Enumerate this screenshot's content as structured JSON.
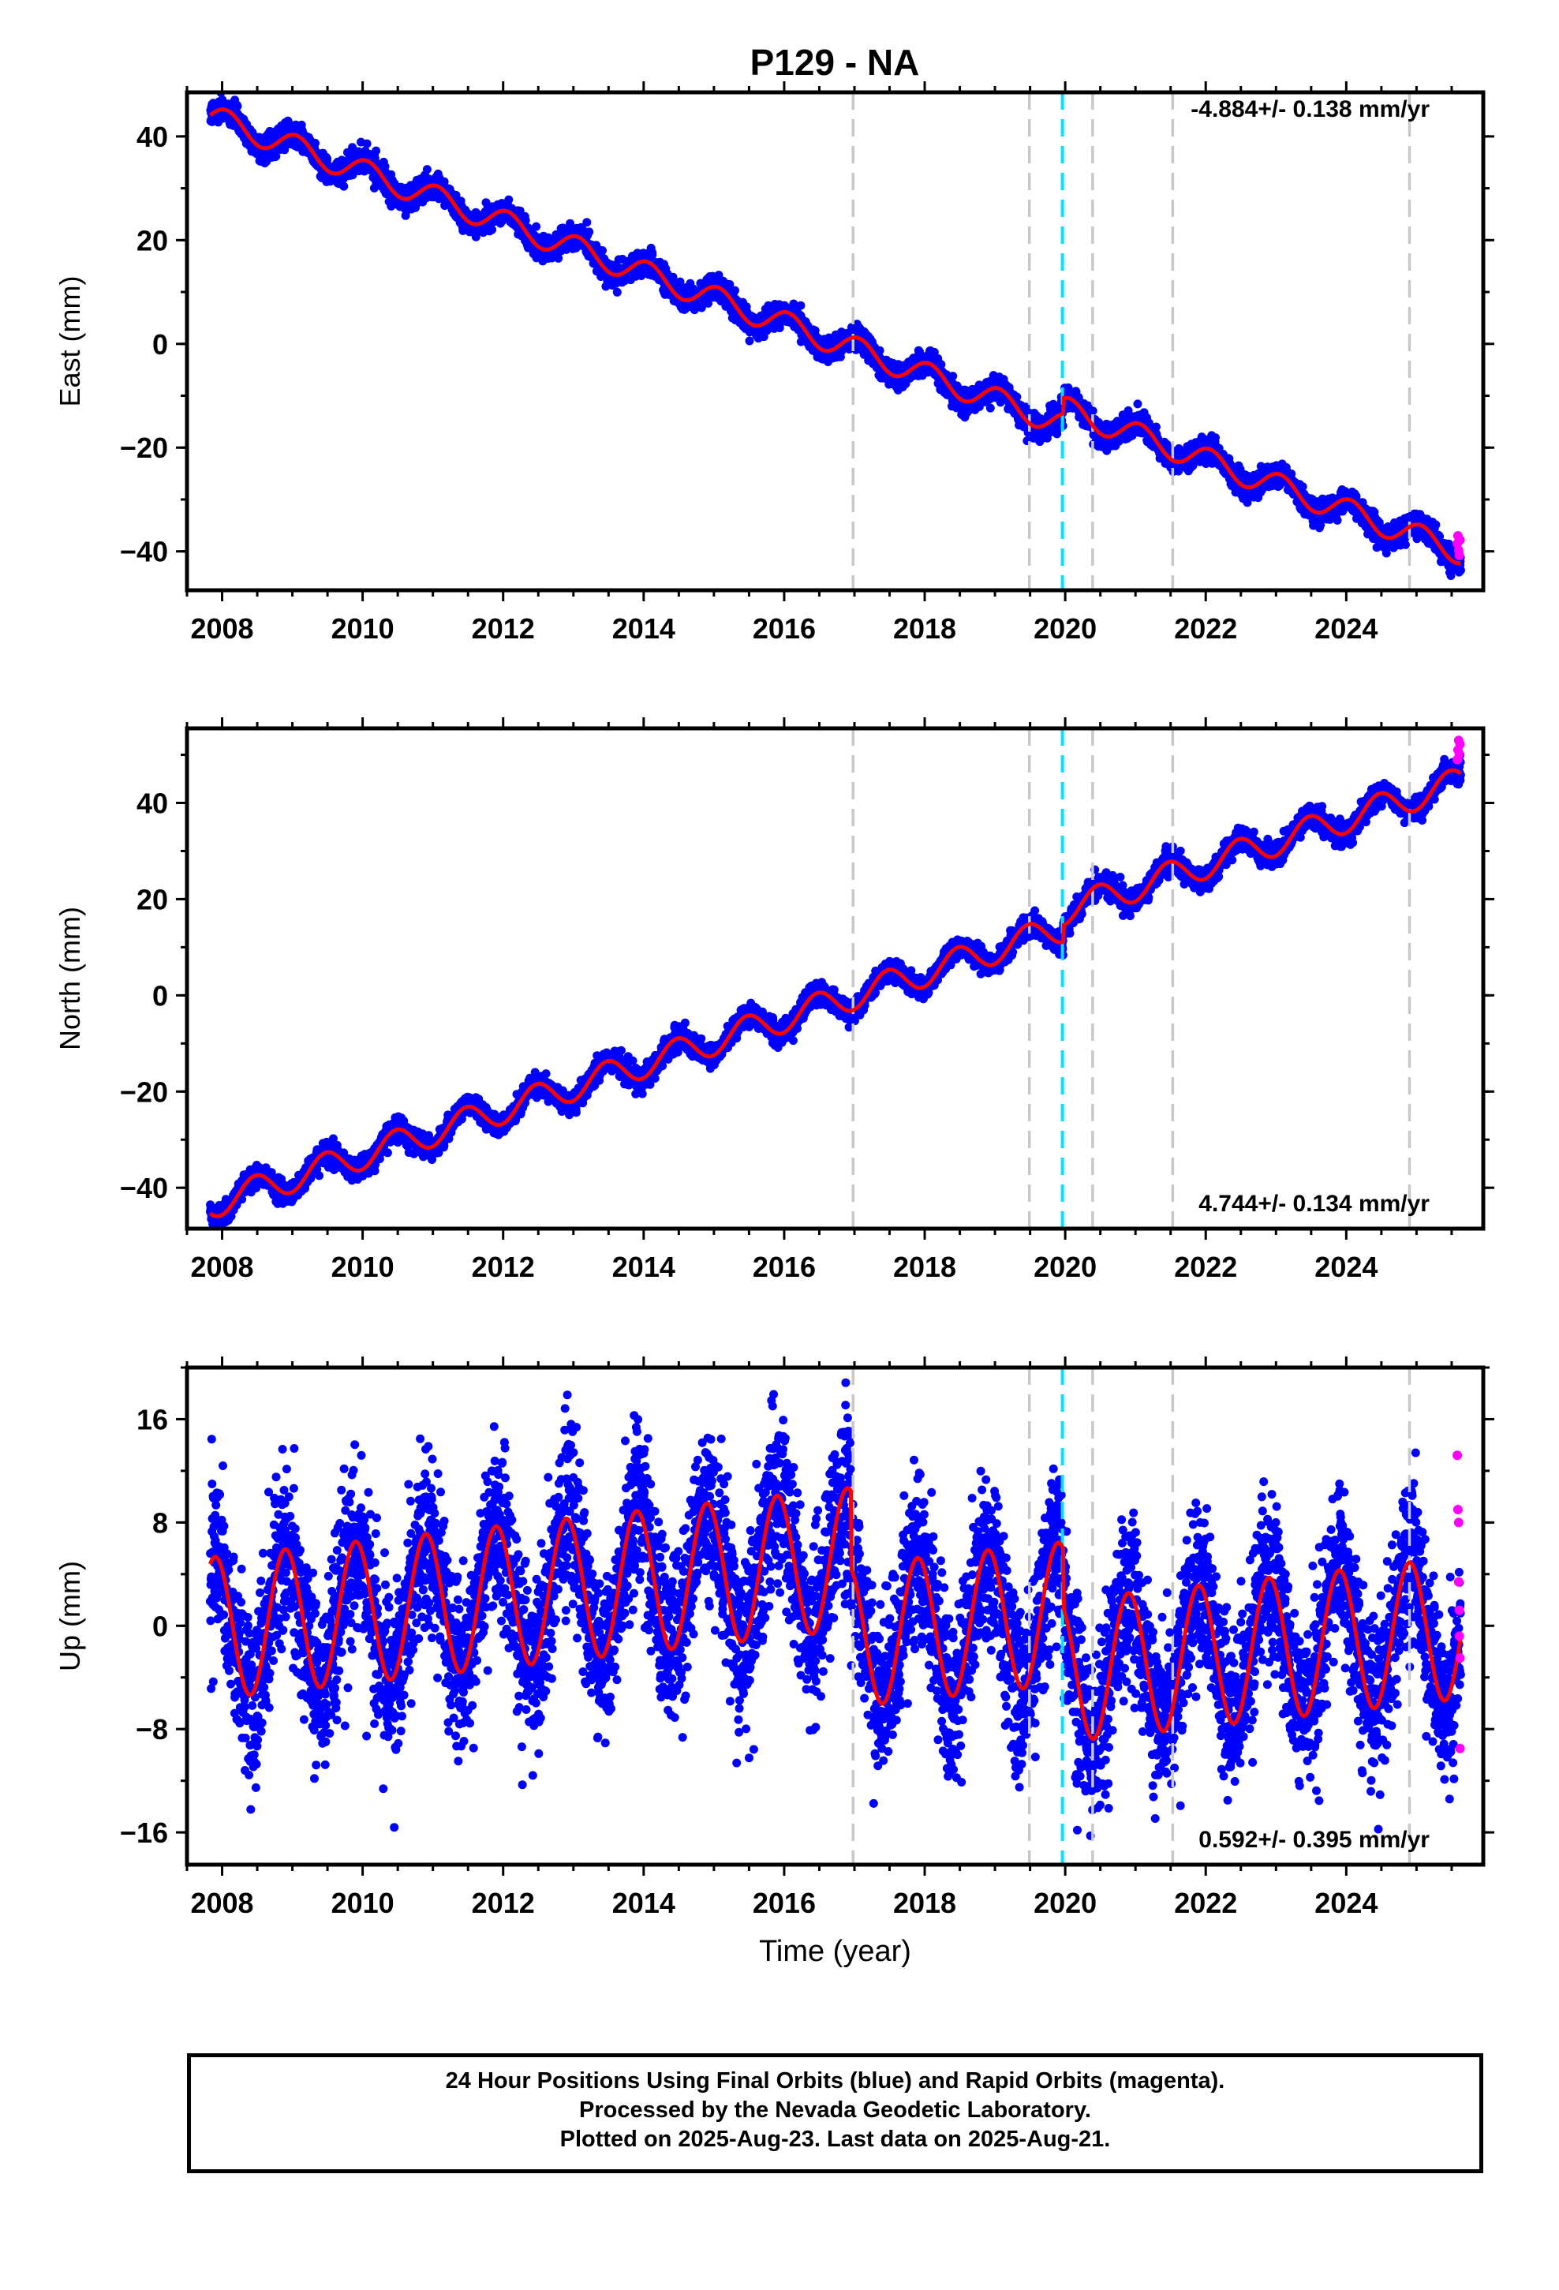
{
  "title": "P129 - NA",
  "colors": {
    "final_orbit": "#0000ff",
    "rapid_orbit": "#ff00ff",
    "model": "#ff0000",
    "equipment_change": "#c8c8c8",
    "earthquake": "#00e5ff"
  },
  "chart_data": [
    {
      "type": "scatter",
      "name": "east",
      "ylabel": "East (mm)",
      "xlabel": "",
      "ylim": [
        -47.5,
        48.5
      ],
      "xlim": [
        2007.5,
        2025.95
      ],
      "yticks": [
        -40,
        -20,
        0,
        20,
        40
      ],
      "xticks": [
        2008,
        2010,
        2012,
        2014,
        2016,
        2018,
        2020,
        2022,
        2024
      ],
      "rate_label": "-4.884+/- 0.138 mm/yr",
      "rate_position": "top-right",
      "model": {
        "start": 2007.83,
        "end": 2025.63,
        "y0": 43.8,
        "rate": -4.884,
        "annual_amp": 2.4,
        "annual_phase": 1.2,
        "noise": 1.1,
        "steps": [
          {
            "year": 2019.97,
            "offset": 3.0
          }
        ]
      },
      "rapid_points": [
        {
          "x": 2025.58,
          "y": -38.5
        },
        {
          "x": 2025.59,
          "y": -37.0
        },
        {
          "x": 2025.6,
          "y": -39.8
        },
        {
          "x": 2025.61,
          "y": -40.8
        },
        {
          "x": 2025.62,
          "y": -37.8
        }
      ]
    },
    {
      "type": "scatter",
      "name": "north",
      "ylabel": "North (mm)",
      "xlabel": "",
      "ylim": [
        -48.5,
        55.5
      ],
      "xlim": [
        2007.5,
        2025.95
      ],
      "yticks": [
        -40,
        -20,
        0,
        20,
        40
      ],
      "xticks": [
        2008,
        2010,
        2012,
        2014,
        2016,
        2018,
        2020,
        2022,
        2024
      ],
      "rate_label": "4.744+/- 0.134 mm/yr",
      "rate_position": "bottom-right",
      "model": {
        "start": 2007.83,
        "end": 2025.63,
        "y0": -43.5,
        "rate": 4.744,
        "annual_amp": 3.0,
        "annual_phase": -1.4,
        "noise": 1.1,
        "steps": [
          {
            "year": 2019.97,
            "offset": 3.5
          }
        ]
      },
      "rapid_points": [
        {
          "x": 2025.58,
          "y": 49.0
        },
        {
          "x": 2025.59,
          "y": 51.0
        },
        {
          "x": 2025.6,
          "y": 53.0
        },
        {
          "x": 2025.61,
          "y": 50.2
        },
        {
          "x": 2025.62,
          "y": 52.2
        }
      ]
    },
    {
      "type": "scatter",
      "name": "up",
      "ylabel": "Up (mm)",
      "xlabel": "Time (year)",
      "ylim": [
        -18.5,
        20.0
      ],
      "xlim": [
        2007.5,
        2025.95
      ],
      "yticks": [
        -16,
        -8,
        0,
        8,
        16
      ],
      "xticks": [
        2008,
        2010,
        2012,
        2014,
        2016,
        2018,
        2020,
        2022,
        2024
      ],
      "rate_label": "0.592+/- 0.395 mm/yr",
      "rate_position": "bottom-right",
      "model": {
        "start": 2007.83,
        "end": 2025.63,
        "y0": -0.2,
        "rate": 0.592,
        "annual_amp": 5.5,
        "annual_phase": 2.2,
        "noise": 3.2,
        "steps": [
          {
            "year": 2016.95,
            "offset": -6.0
          },
          {
            "year": 2019.97,
            "offset": -4.5
          }
        ]
      },
      "rapid_points": [
        {
          "x": 2025.58,
          "y": 13.2
        },
        {
          "x": 2025.59,
          "y": 9.0
        },
        {
          "x": 2025.6,
          "y": 8.0
        },
        {
          "x": 2025.6,
          "y": 3.4
        },
        {
          "x": 2025.61,
          "y": 1.2
        },
        {
          "x": 2025.61,
          "y": -0.8
        },
        {
          "x": 2025.62,
          "y": -2.5
        },
        {
          "x": 2025.62,
          "y": -9.5
        }
      ]
    }
  ],
  "vertical_lines": [
    {
      "year": 2016.98,
      "kind": "equipment_change"
    },
    {
      "year": 2019.49,
      "kind": "equipment_change"
    },
    {
      "year": 2019.96,
      "kind": "earthquake"
    },
    {
      "year": 2020.39,
      "kind": "equipment_change"
    },
    {
      "year": 2021.53,
      "kind": "equipment_change"
    },
    {
      "year": 2024.9,
      "kind": "equipment_change"
    }
  ],
  "caption": {
    "line1": "24 Hour Positions Using Final Orbits (blue) and Rapid Orbits (magenta).",
    "line2": "Processed by the Nevada Geodetic Laboratory.",
    "line3": "Plotted on 2025-Aug-23. Last data on 2025-Aug-21."
  }
}
